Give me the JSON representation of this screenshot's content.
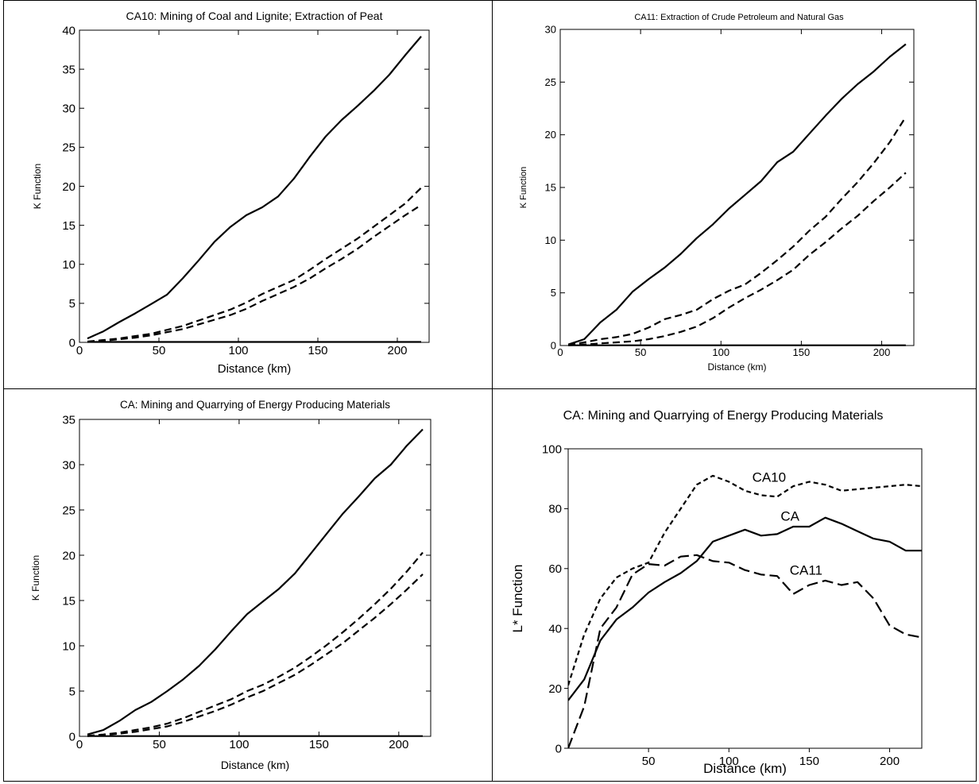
{
  "chart_data": [
    {
      "type": "line",
      "title": "CA10: Mining of Coal and Lignite; Extraction of Peat",
      "xlabel": "Distance (km)",
      "ylabel": "K Function",
      "xlim": [
        0,
        220
      ],
      "ylim": [
        0,
        40
      ],
      "xticks": [
        0,
        50,
        100,
        150,
        200
      ],
      "yticks": [
        0,
        5,
        10,
        15,
        20,
        25,
        30,
        35,
        40
      ],
      "x": [
        5,
        15,
        25,
        35,
        45,
        55,
        65,
        75,
        85,
        95,
        105,
        115,
        125,
        135,
        145,
        155,
        165,
        175,
        185,
        195,
        205,
        215
      ],
      "series": [
        {
          "style": "solid",
          "values": [
            0.5,
            1.4,
            2.6,
            3.7,
            4.9,
            6.1,
            8.2,
            10.5,
            12.9,
            14.8,
            16.3,
            17.3,
            18.7,
            21.0,
            23.8,
            26.4,
            28.5,
            30.3,
            32.2,
            34.3,
            36.8,
            39.2
          ]
        },
        {
          "style": "dashed",
          "values": [
            0.1,
            0.3,
            0.5,
            0.8,
            1.1,
            1.6,
            2.1,
            2.8,
            3.5,
            4.2,
            5.1,
            6.2,
            7.1,
            8.0,
            9.3,
            10.7,
            12.0,
            13.3,
            14.8,
            16.3,
            17.8,
            19.8
          ]
        },
        {
          "style": "dashed",
          "values": [
            0.05,
            0.2,
            0.4,
            0.6,
            0.9,
            1.3,
            1.7,
            2.3,
            2.9,
            3.5,
            4.3,
            5.3,
            6.2,
            7.1,
            8.2,
            9.5,
            10.7,
            12.0,
            13.5,
            14.9,
            16.3,
            17.6
          ]
        },
        {
          "style": "solid",
          "values": [
            0.05,
            0.05,
            0.05,
            0.05,
            0.05,
            0.05,
            0.05,
            0.05,
            0.05,
            0.05,
            0.05,
            0.05,
            0.05,
            0.05,
            0.05,
            0.05,
            0.05,
            0.05,
            0.05,
            0.05,
            0.05,
            0.05
          ]
        }
      ]
    },
    {
      "type": "line",
      "title": "CA11: Extraction of Crude Petroleum and Natural Gas",
      "xlabel": "Distance (km)",
      "ylabel": "K Function",
      "xlim": [
        0,
        220
      ],
      "ylim": [
        0,
        30
      ],
      "xticks": [
        0,
        50,
        100,
        150,
        200
      ],
      "yticks": [
        0,
        5,
        10,
        15,
        20,
        25,
        30
      ],
      "x": [
        5,
        15,
        25,
        35,
        45,
        55,
        65,
        75,
        85,
        95,
        105,
        115,
        125,
        135,
        145,
        155,
        165,
        175,
        185,
        195,
        205,
        215
      ],
      "series": [
        {
          "style": "solid",
          "values": [
            0.1,
            0.6,
            2.2,
            3.4,
            5.1,
            6.3,
            7.4,
            8.7,
            10.2,
            11.5,
            13.0,
            14.3,
            15.6,
            17.4,
            18.4,
            20.1,
            21.8,
            23.4,
            24.8,
            26.0,
            27.4,
            28.6
          ]
        },
        {
          "style": "dashed",
          "values": [
            0.05,
            0.3,
            0.6,
            0.8,
            1.1,
            1.7,
            2.5,
            2.9,
            3.4,
            4.4,
            5.2,
            5.8,
            6.9,
            8.1,
            9.4,
            10.9,
            12.2,
            13.9,
            15.5,
            17.3,
            19.3,
            21.7
          ]
        },
        {
          "style": "dashed",
          "values": [
            0.02,
            0.1,
            0.2,
            0.3,
            0.4,
            0.6,
            0.9,
            1.3,
            1.8,
            2.6,
            3.6,
            4.5,
            5.3,
            6.2,
            7.2,
            8.6,
            9.8,
            11.1,
            12.3,
            13.7,
            15.0,
            16.4
          ]
        },
        {
          "style": "solid",
          "values": [
            0.02,
            0.02,
            0.02,
            0.02,
            0.02,
            0.02,
            0.02,
            0.02,
            0.02,
            0.02,
            0.02,
            0.02,
            0.02,
            0.02,
            0.02,
            0.02,
            0.02,
            0.02,
            0.02,
            0.02,
            0.02,
            0.02
          ]
        }
      ]
    },
    {
      "type": "line",
      "title": "CA: Mining and Quarrying of Energy Producing Materials",
      "xlabel": "Distance (km)",
      "ylabel": "K Function",
      "xlim": [
        0,
        220
      ],
      "ylim": [
        0,
        35
      ],
      "xticks": [
        0,
        50,
        100,
        150,
        200
      ],
      "yticks": [
        0,
        5,
        10,
        15,
        20,
        25,
        30,
        35
      ],
      "x": [
        5,
        15,
        25,
        35,
        45,
        55,
        65,
        75,
        85,
        95,
        105,
        115,
        125,
        135,
        145,
        155,
        165,
        175,
        185,
        195,
        205,
        215
      ],
      "series": [
        {
          "style": "solid",
          "values": [
            0.2,
            0.7,
            1.7,
            2.9,
            3.8,
            5.0,
            6.3,
            7.8,
            9.6,
            11.6,
            13.5,
            14.9,
            16.3,
            18.0,
            20.2,
            22.4,
            24.6,
            26.5,
            28.5,
            30.0,
            32.1,
            33.9
          ]
        },
        {
          "style": "dashed",
          "values": [
            0.05,
            0.2,
            0.4,
            0.7,
            1.0,
            1.4,
            2.0,
            2.7,
            3.4,
            4.1,
            5.0,
            5.7,
            6.6,
            7.6,
            8.8,
            10.1,
            11.5,
            13.0,
            14.6,
            16.3,
            18.2,
            20.3
          ]
        },
        {
          "style": "dashed",
          "values": [
            0.03,
            0.15,
            0.3,
            0.5,
            0.8,
            1.1,
            1.6,
            2.2,
            2.8,
            3.5,
            4.3,
            5.0,
            5.9,
            6.8,
            7.9,
            9.1,
            10.3,
            11.7,
            13.1,
            14.6,
            16.2,
            17.9
          ]
        },
        {
          "style": "solid",
          "values": [
            0.03,
            0.03,
            0.03,
            0.03,
            0.03,
            0.03,
            0.03,
            0.03,
            0.03,
            0.03,
            0.03,
            0.03,
            0.03,
            0.03,
            0.03,
            0.03,
            0.03,
            0.03,
            0.03,
            0.03,
            0.03,
            0.03
          ]
        }
      ]
    },
    {
      "type": "line",
      "title": "CA: Mining and Quarrying of Energy Producing Materials",
      "xlabel": "Distance (km)",
      "ylabel": "L* Function",
      "xlim": [
        0,
        220
      ],
      "ylim": [
        0,
        100
      ],
      "xticks": [
        50,
        100,
        150,
        200
      ],
      "yticks": [
        0,
        20,
        40,
        60,
        80,
        100
      ],
      "x": [
        0,
        10,
        20,
        30,
        40,
        50,
        60,
        70,
        80,
        90,
        100,
        110,
        120,
        130,
        140,
        150,
        160,
        170,
        180,
        190,
        200,
        210,
        220
      ],
      "series": [
        {
          "name": "CA10",
          "style": "short-dash",
          "values": [
            21,
            38,
            50,
            57,
            60,
            62,
            72,
            80,
            88,
            91,
            89,
            86,
            84.5,
            84,
            87.5,
            89,
            88,
            86,
            86.5,
            87,
            87.5,
            88,
            87.5
          ]
        },
        {
          "name": "CA",
          "style": "solid",
          "values": [
            16,
            23,
            36,
            43,
            47,
            52,
            55.5,
            58.5,
            62.5,
            69,
            71,
            73,
            71,
            71.5,
            74,
            74,
            77,
            75,
            72.5,
            70,
            69,
            66,
            66
          ]
        },
        {
          "name": "CA11",
          "style": "long-dash",
          "values": [
            0,
            14,
            40,
            47,
            58,
            61.5,
            61,
            64,
            64.5,
            62.5,
            62,
            59.5,
            58,
            57.5,
            51.5,
            54.5,
            56,
            54.5,
            55.5,
            50,
            41,
            38,
            37
          ]
        }
      ]
    }
  ]
}
